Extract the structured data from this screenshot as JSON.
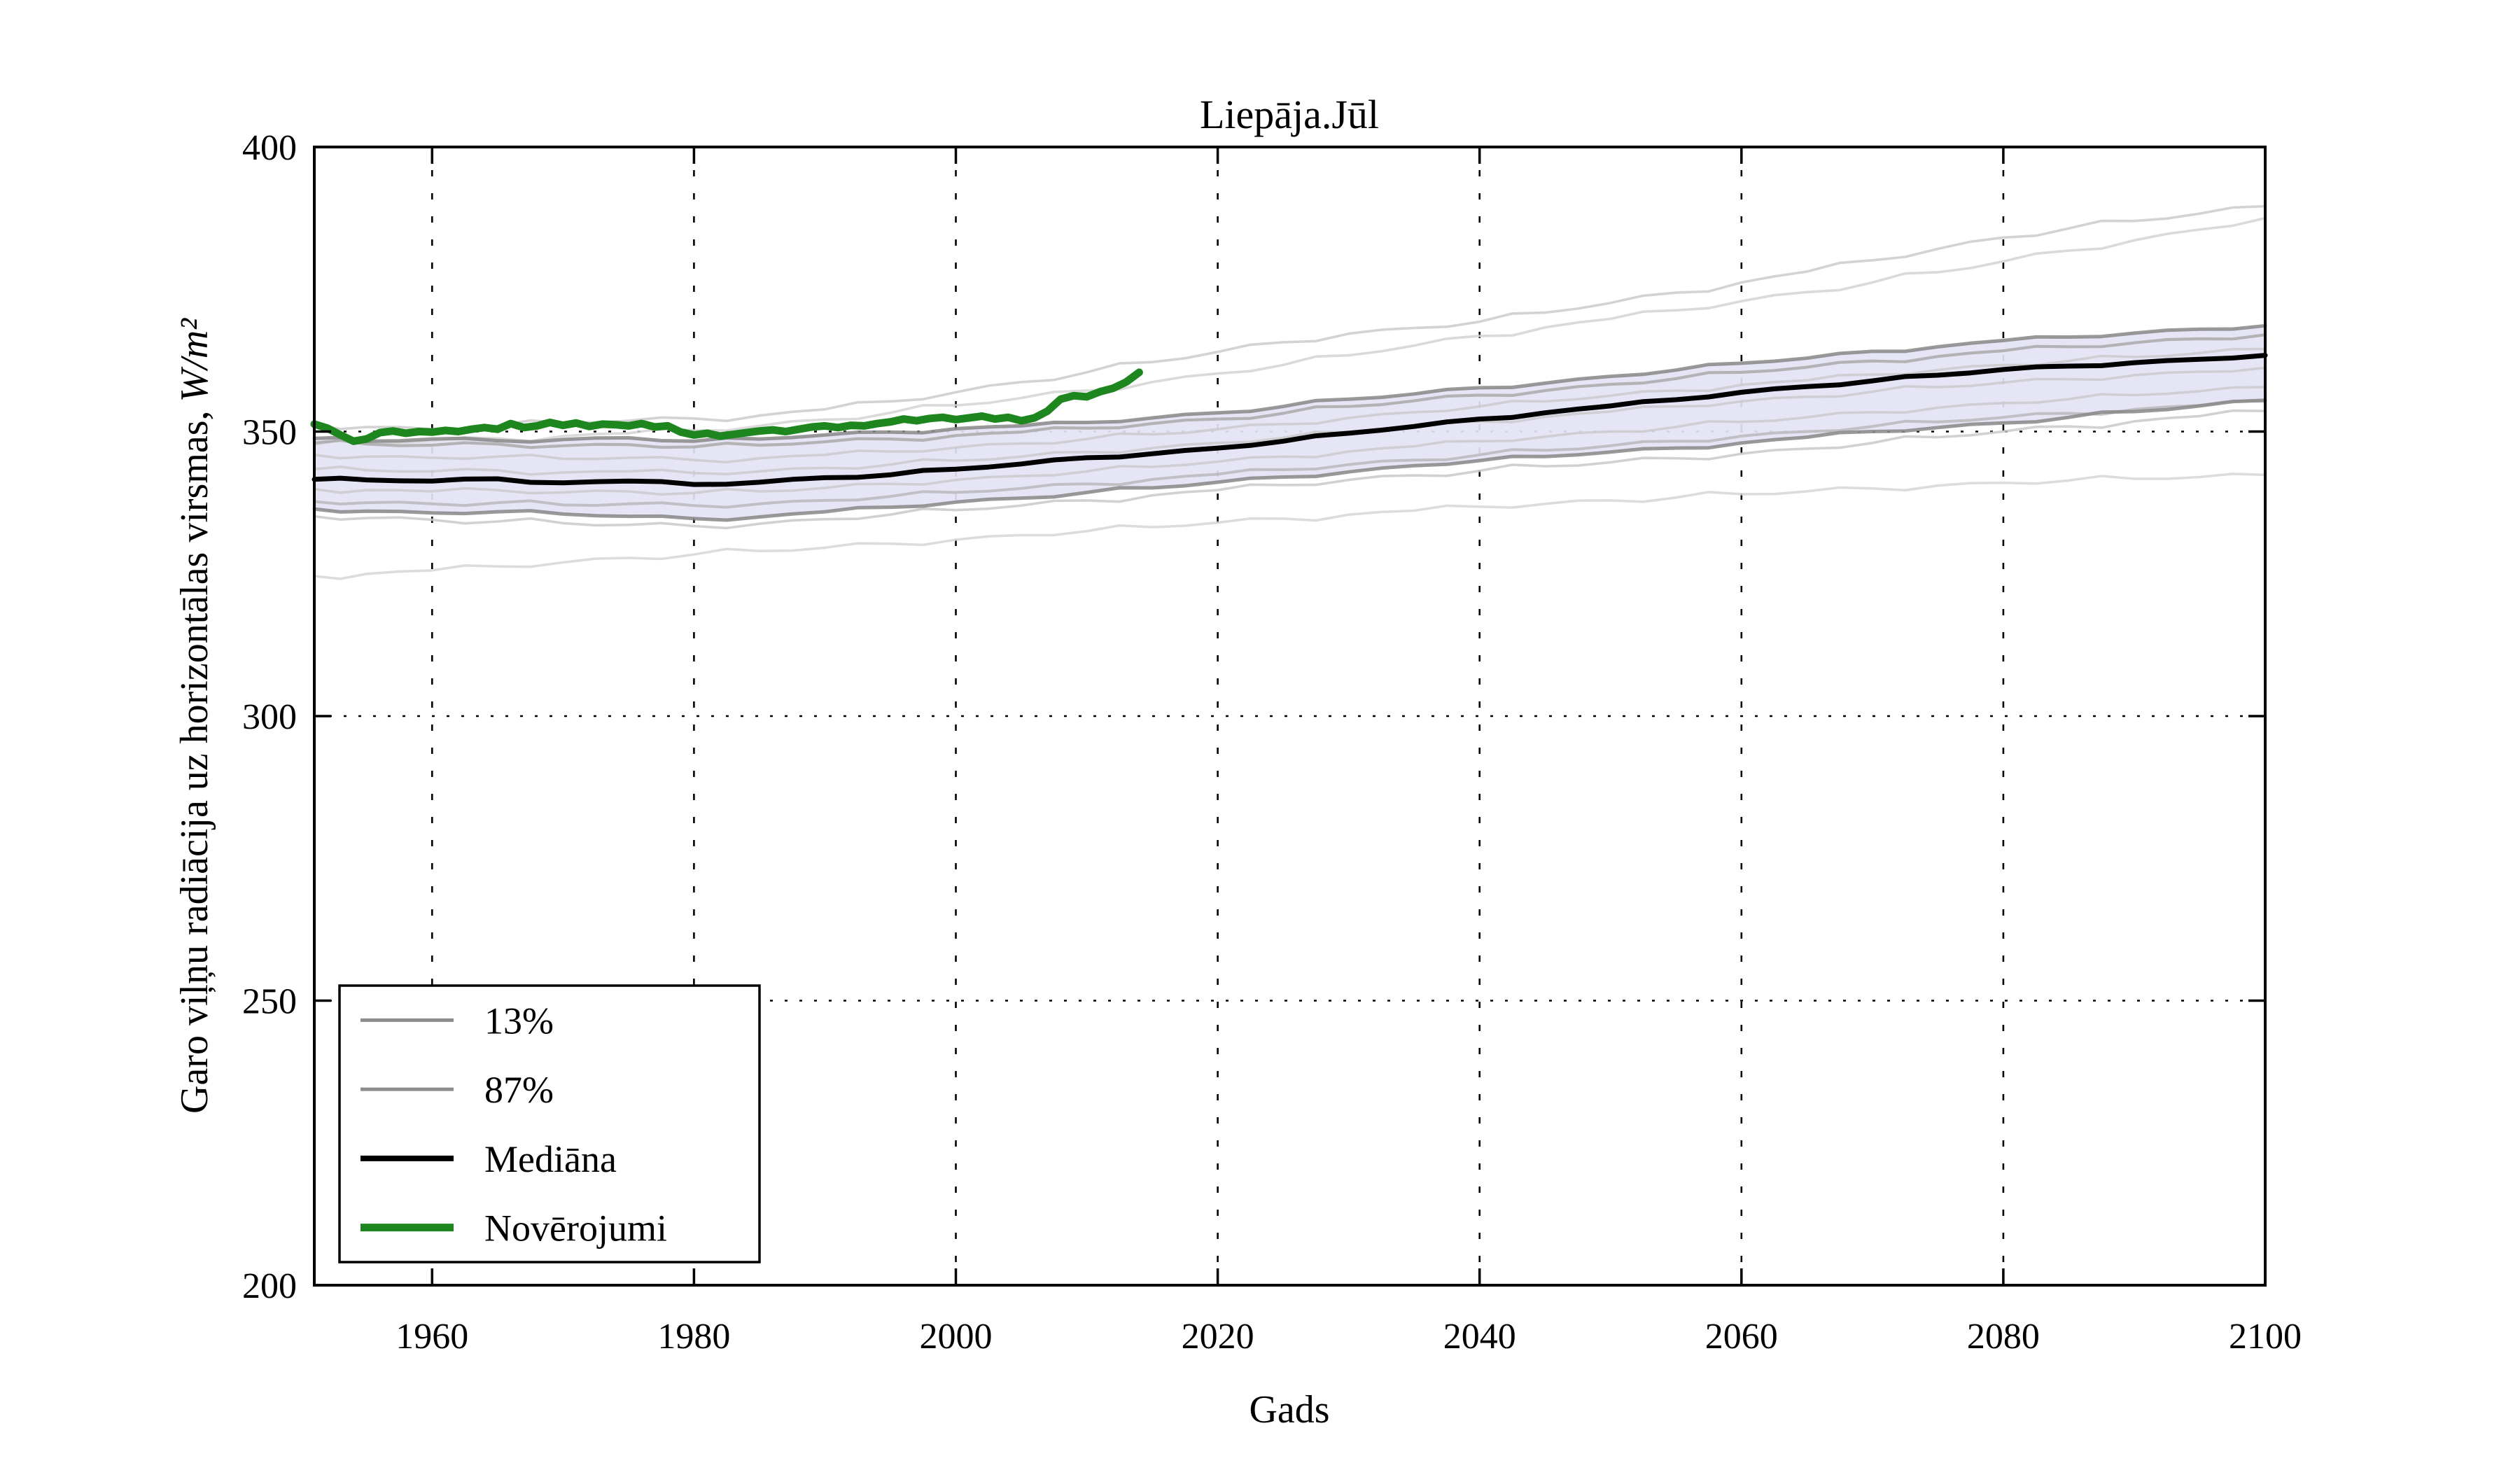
{
  "figure": {
    "background": "#ffffff",
    "spine_color": "#000000"
  },
  "chart_data": {
    "type": "line",
    "title": "Liepāja.Jūl",
    "xlabel": "Gads",
    "ylabel": "Garo viļņu radiācija uz horizontālas virsmas,",
    "ylabel_unit": "W/m²",
    "xlim": [
      1951,
      2100
    ],
    "ylim": [
      200,
      400
    ],
    "xticks": [
      1960,
      1980,
      2000,
      2020,
      2040,
      2060,
      2080,
      2100
    ],
    "yticks": [
      200,
      250,
      300,
      350,
      400
    ],
    "grid": {
      "style": "dotted",
      "color": "#000000",
      "on": true
    },
    "band": {
      "label_upper": "87%",
      "label_lower": "13%",
      "fill": "#e3e3f5"
    },
    "x_model": [
      1951,
      1955,
      1960,
      1965,
      1970,
      1975,
      1980,
      1985,
      1990,
      1995,
      2000,
      2005,
      2010,
      2015,
      2020,
      2025,
      2030,
      2035,
      2040,
      2045,
      2050,
      2055,
      2060,
      2065,
      2070,
      2075,
      2080,
      2085,
      2090,
      2095,
      2100
    ],
    "series": [
      {
        "name": "ensemble-high-1",
        "role": "ensemble",
        "color": "#cbcbcb",
        "width": 3.6,
        "opacity": 0.85,
        "values": [
          351.2,
          350.8,
          350.4,
          351.0,
          351.6,
          351.9,
          352.3,
          352.8,
          353.9,
          355.3,
          356.9,
          358.7,
          360.4,
          362.2,
          364.0,
          365.7,
          367.2,
          368.2,
          369.3,
          370.9,
          372.6,
          374.4,
          376.2,
          378.1,
          380.1,
          382.1,
          384.1,
          385.7,
          387.0,
          388.3,
          389.6
        ]
      },
      {
        "name": "ensemble-high-2",
        "role": "ensemble",
        "color": "#d4d4d4",
        "width": 3.6,
        "opacity": 0.85,
        "values": [
          347.7,
          348.0,
          348.4,
          348.8,
          349.2,
          349.7,
          350.2,
          351.0,
          352.1,
          353.3,
          354.6,
          355.9,
          357.2,
          358.7,
          360.2,
          361.7,
          363.4,
          365.1,
          366.8,
          368.3,
          369.8,
          371.3,
          372.9,
          374.5,
          376.2,
          378.0,
          379.9,
          381.8,
          383.6,
          385.5,
          387.5
        ]
      },
      {
        "name": "ensemble-low-1",
        "role": "ensemble",
        "color": "#d6d6d6",
        "width": 3.6,
        "opacity": 0.85,
        "values": [
          324.6,
          325.0,
          325.6,
          326.3,
          327.0,
          327.8,
          328.4,
          329.0,
          329.6,
          330.3,
          331.0,
          331.8,
          332.5,
          333.2,
          334.0,
          334.7,
          335.4,
          336.1,
          336.8,
          337.3,
          337.9,
          338.4,
          339.0,
          339.5,
          340.0,
          340.5,
          341.0,
          341.4,
          341.7,
          342.0,
          342.4
        ]
      },
      {
        "name": "ensemble-low-2",
        "role": "ensemble",
        "color": "#c9c9c9",
        "width": 3.6,
        "opacity": 0.85,
        "values": [
          335.1,
          334.8,
          334.5,
          334.2,
          333.9,
          333.6,
          333.4,
          333.8,
          334.6,
          335.4,
          336.2,
          337.0,
          337.9,
          338.8,
          339.7,
          340.6,
          341.5,
          342.3,
          343.1,
          343.9,
          344.6,
          345.3,
          346.1,
          347.0,
          348.0,
          349.0,
          350.0,
          350.9,
          351.8,
          352.7,
          353.6
        ]
      },
      {
        "name": "ensemble-inner-1",
        "role": "ensemble-inner",
        "color": "#a6a6a6",
        "width": 4.2,
        "opacity": 0.8,
        "values": [
          348.0,
          347.8,
          347.6,
          347.8,
          347.5,
          347.7,
          347.3,
          347.6,
          348.2,
          348.7,
          349.3,
          349.9,
          350.6,
          351.4,
          352.2,
          353.2,
          354.4,
          355.4,
          356.4,
          357.2,
          358.3,
          359.3,
          360.4,
          361.3,
          362.4,
          363.2,
          364.2,
          364.9,
          365.6,
          366.3,
          367.0
        ]
      },
      {
        "name": "ensemble-inner-2",
        "role": "ensemble-inner",
        "color": "#c4c4c4",
        "width": 3.6,
        "opacity": 0.7,
        "values": [
          345.9,
          345.6,
          345.4,
          345.6,
          345.2,
          345.4,
          345.0,
          345.3,
          345.9,
          346.5,
          347.2,
          347.9,
          348.7,
          349.5,
          350.4,
          351.3,
          352.4,
          353.4,
          354.4,
          355.3,
          356.3,
          357.2,
          358.2,
          359.0,
          360.0,
          360.8,
          361.7,
          362.4,
          363.1,
          363.8,
          364.5
        ]
      },
      {
        "name": "ensemble-inner-3",
        "role": "ensemble-inner",
        "color": "#c4c4c4",
        "width": 3.6,
        "opacity": 0.7,
        "values": [
          343.4,
          343.2,
          343.0,
          343.2,
          342.8,
          343.0,
          342.7,
          343.0,
          343.6,
          344.2,
          344.9,
          345.6,
          346.4,
          347.1,
          348.0,
          348.9,
          349.9,
          350.8,
          351.8,
          352.6,
          353.5,
          354.4,
          355.3,
          356.1,
          357.0,
          357.8,
          358.6,
          359.2,
          359.9,
          360.5,
          361.2
        ]
      },
      {
        "name": "ensemble-inner-4",
        "role": "ensemble-inner",
        "color": "#c4c4c4",
        "width": 3.6,
        "opacity": 0.7,
        "values": [
          339.9,
          339.7,
          339.5,
          339.7,
          339.3,
          339.5,
          339.2,
          339.5,
          340.1,
          340.8,
          341.5,
          342.2,
          343.0,
          343.8,
          344.7,
          345.6,
          346.5,
          347.4,
          348.3,
          349.1,
          350.0,
          350.8,
          351.7,
          352.5,
          353.4,
          354.2,
          355.0,
          355.7,
          356.4,
          357.1,
          357.8
        ]
      },
      {
        "name": "ensemble-inner-5",
        "role": "ensemble-inner",
        "color": "#b3b3b3",
        "width": 4.0,
        "opacity": 0.75,
        "values": [
          337.7,
          337.5,
          337.3,
          337.5,
          337.1,
          337.3,
          337.0,
          337.3,
          337.9,
          338.6,
          339.3,
          340.0,
          340.8,
          341.6,
          342.5,
          343.3,
          344.2,
          345.0,
          345.9,
          346.7,
          347.5,
          348.3,
          349.2,
          350.0,
          350.9,
          351.7,
          352.5,
          353.2,
          353.9,
          354.6,
          355.3
        ]
      },
      {
        "name": "87%",
        "role": "band-upper",
        "color": "#878787",
        "width": 5,
        "opacity": 0.85,
        "values": [
          348.8,
          348.3,
          348.7,
          348.4,
          348.6,
          348.9,
          348.3,
          348.7,
          349.4,
          349.9,
          350.5,
          351.0,
          351.6,
          352.4,
          353.3,
          354.4,
          355.7,
          356.6,
          357.7,
          358.5,
          359.7,
          360.8,
          362.0,
          362.9,
          364.1,
          364.9,
          366.0,
          366.6,
          367.3,
          368.0,
          368.6
        ]
      },
      {
        "name": "13%",
        "role": "band-lower",
        "color": "#878787",
        "width": 5,
        "opacity": 0.85,
        "values": [
          336.4,
          336.0,
          335.7,
          335.9,
          335.5,
          335.1,
          334.7,
          335.0,
          335.9,
          336.7,
          337.6,
          338.3,
          339.3,
          340.1,
          341.1,
          342.0,
          342.9,
          344.0,
          344.9,
          345.6,
          346.4,
          347.1,
          348.0,
          349.0,
          350.0,
          350.7,
          351.5,
          352.5,
          353.5,
          354.5,
          355.5
        ]
      },
      {
        "name": "Mediāna",
        "role": "median",
        "color": "#000000",
        "width": 7,
        "opacity": 1,
        "values": [
          341.6,
          341.5,
          341.3,
          341.7,
          341.0,
          341.3,
          340.7,
          341.1,
          341.9,
          342.4,
          343.4,
          344.3,
          345.4,
          346.1,
          347.1,
          348.3,
          349.7,
          350.9,
          352.2,
          353.3,
          354.5,
          355.6,
          356.9,
          357.9,
          358.9,
          359.9,
          360.9,
          361.5,
          362.1,
          362.7,
          363.4
        ]
      }
    ],
    "observations": {
      "name": "Novērojumi",
      "color": "#1e861e",
      "width": 11,
      "x": [
        1951,
        1952,
        1953,
        1954,
        1955,
        1956,
        1957,
        1958,
        1959,
        1960,
        1961,
        1962,
        1963,
        1964,
        1965,
        1966,
        1967,
        1968,
        1969,
        1970,
        1971,
        1972,
        1973,
        1974,
        1975,
        1976,
        1977,
        1978,
        1979,
        1980,
        1981,
        1982,
        1983,
        1984,
        1985,
        1986,
        1987,
        1988,
        1989,
        1990,
        1991,
        1992,
        1993,
        1994,
        1995,
        1996,
        1997,
        1998,
        1999,
        2000,
        2001,
        2002,
        2003,
        2004,
        2005,
        2006,
        2007,
        2008,
        2009,
        2010,
        2011,
        2012,
        2013,
        2014
      ],
      "values": [
        351.3,
        350.6,
        349.4,
        348.3,
        348.7,
        349.8,
        350.1,
        349.7,
        350.0,
        349.9,
        350.2,
        350.0,
        350.4,
        350.7,
        350.4,
        351.4,
        350.7,
        351.0,
        351.6,
        351.1,
        351.5,
        350.9,
        351.3,
        351.2,
        351.0,
        351.4,
        350.8,
        351.0,
        349.9,
        349.4,
        349.7,
        349.2,
        349.5,
        349.8,
        350.1,
        350.3,
        350.0,
        350.4,
        350.8,
        351.0,
        350.7,
        351.1,
        351.0,
        351.4,
        351.7,
        352.2,
        351.9,
        352.3,
        352.5,
        352.1,
        352.4,
        352.7,
        352.2,
        352.5,
        351.9,
        352.4,
        353.6,
        355.7,
        356.3,
        356.1,
        357.0,
        357.6,
        358.7,
        360.4
      ]
    },
    "legend": {
      "position": "lower-left",
      "entries": [
        {
          "label": "13%",
          "color": "#8c8c8c",
          "width": 5
        },
        {
          "label": "87%",
          "color": "#8c8c8c",
          "width": 5
        },
        {
          "label": "Mediāna",
          "color": "#000000",
          "width": 8
        },
        {
          "label": "Novērojumi",
          "color": "#1e861e",
          "width": 11
        }
      ]
    }
  }
}
